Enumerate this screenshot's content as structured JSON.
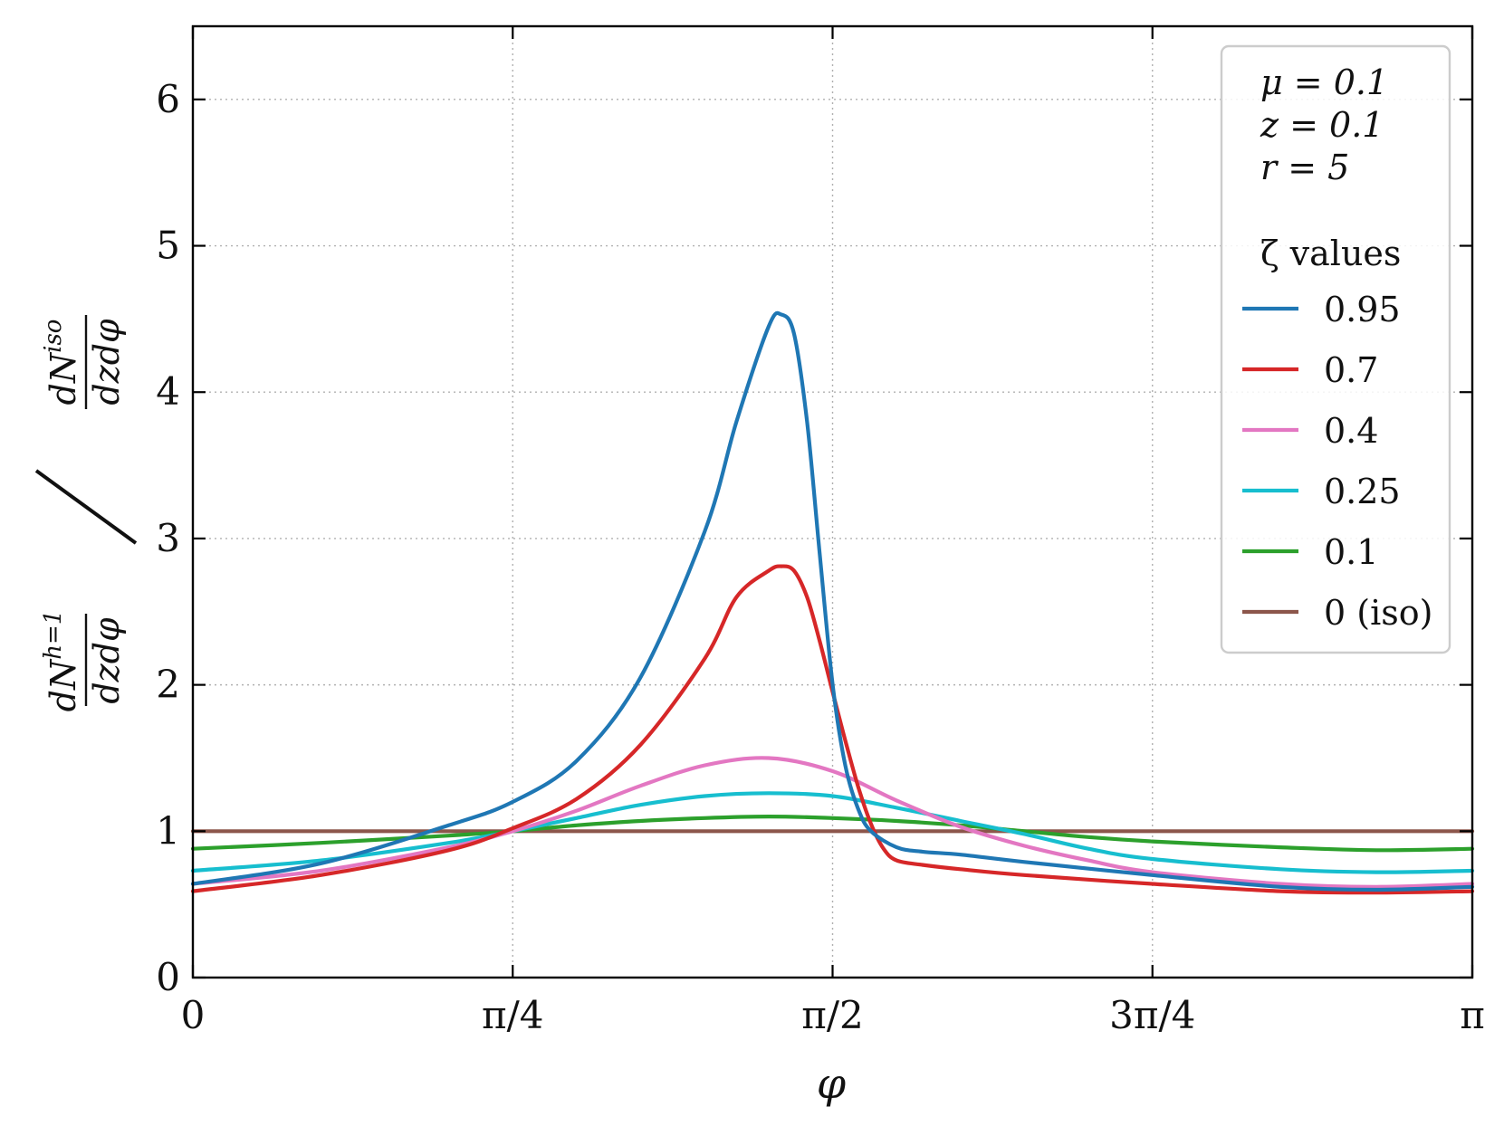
{
  "chart_data": {
    "type": "line",
    "xlabel": "φ",
    "ylabel": {
      "numerator": "dN",
      "numerator_sup": "h=1",
      "denominator": "dzdφ",
      "slash": "/",
      "iso_numerator": "dN",
      "iso_sup": "iso",
      "iso_denominator": "dzdφ"
    },
    "xlim": [
      0,
      3.14159
    ],
    "ylim": [
      0,
      6.5
    ],
    "grid": true,
    "legend_position": "top-right",
    "x_ticks": [
      {
        "value": 0,
        "label": "0"
      },
      {
        "value": 0.785398,
        "label": "π/4"
      },
      {
        "value": 1.570796,
        "label": "π/2"
      },
      {
        "value": 2.356194,
        "label": "3π/4"
      },
      {
        "value": 3.141593,
        "label": "π"
      }
    ],
    "y_ticks": [
      {
        "value": 0,
        "label": "0"
      },
      {
        "value": 1,
        "label": "1"
      },
      {
        "value": 2,
        "label": "2"
      },
      {
        "value": 3,
        "label": "3"
      },
      {
        "value": 4,
        "label": "4"
      },
      {
        "value": 5,
        "label": "5"
      },
      {
        "value": 6,
        "label": "6"
      }
    ],
    "legend": {
      "params": [
        "μ = 0.1",
        "z = 0.1",
        "r = 5"
      ],
      "title": "ζ values"
    },
    "series": [
      {
        "name": "0.95",
        "color": "#1f77b4",
        "x": [
          0,
          0.314,
          0.628,
          0.785,
          0.942,
          1.099,
          1.257,
          1.335,
          1.414,
          1.445,
          1.476,
          1.508,
          1.539,
          1.571,
          1.602,
          1.634,
          1.665,
          1.728,
          1.791,
          1.885,
          2.042,
          2.356,
          2.67,
          2.906,
          3.14159
        ],
        "y": [
          0.64,
          0.78,
          1.04,
          1.2,
          1.48,
          2.05,
          3.05,
          3.8,
          4.45,
          4.53,
          4.4,
          3.8,
          2.9,
          2.0,
          1.45,
          1.15,
          1.0,
          0.89,
          0.86,
          0.84,
          0.79,
          0.7,
          0.62,
          0.6,
          0.62
        ]
      },
      {
        "name": "0.7",
        "color": "#d62728",
        "x": [
          0,
          0.314,
          0.628,
          0.785,
          0.942,
          1.099,
          1.257,
          1.335,
          1.414,
          1.445,
          1.476,
          1.508,
          1.539,
          1.571,
          1.602,
          1.634,
          1.665,
          1.696,
          1.728,
          1.791,
          1.885,
          2.042,
          2.356,
          2.67,
          2.906,
          3.14159
        ],
        "y": [
          0.59,
          0.7,
          0.87,
          1.02,
          1.22,
          1.59,
          2.18,
          2.6,
          2.78,
          2.81,
          2.78,
          2.6,
          2.3,
          1.95,
          1.62,
          1.3,
          1.05,
          0.88,
          0.8,
          0.77,
          0.74,
          0.7,
          0.64,
          0.59,
          0.58,
          0.59
        ]
      },
      {
        "name": "0.4",
        "color": "#e377c2",
        "x": [
          0,
          0.314,
          0.628,
          0.785,
          0.942,
          1.099,
          1.257,
          1.414,
          1.571,
          1.728,
          1.885,
          2.042,
          2.199,
          2.356,
          2.67,
          2.906,
          3.14159
        ],
        "y": [
          0.64,
          0.73,
          0.89,
          1.0,
          1.14,
          1.31,
          1.45,
          1.5,
          1.41,
          1.21,
          1.03,
          0.9,
          0.8,
          0.72,
          0.64,
          0.62,
          0.64
        ]
      },
      {
        "name": "0.25",
        "color": "#17becf",
        "x": [
          0,
          0.314,
          0.628,
          0.785,
          0.942,
          1.099,
          1.257,
          1.414,
          1.571,
          1.728,
          1.885,
          2.042,
          2.199,
          2.356,
          2.67,
          2.906,
          3.14159
        ],
        "y": [
          0.73,
          0.8,
          0.92,
          1.0,
          1.09,
          1.18,
          1.24,
          1.26,
          1.24,
          1.16,
          1.07,
          0.98,
          0.88,
          0.81,
          0.74,
          0.72,
          0.73
        ]
      },
      {
        "name": "0.1",
        "color": "#2ca02c",
        "x": [
          0,
          0.314,
          0.628,
          0.785,
          0.942,
          1.099,
          1.257,
          1.414,
          1.571,
          1.728,
          1.885,
          2.042,
          2.199,
          2.356,
          2.67,
          2.906,
          3.14159
        ],
        "y": [
          0.88,
          0.92,
          0.97,
          1.0,
          1.04,
          1.07,
          1.09,
          1.1,
          1.09,
          1.07,
          1.04,
          1.0,
          0.96,
          0.93,
          0.89,
          0.87,
          0.88
        ]
      },
      {
        "name": "0 (iso)",
        "color": "#8c564b",
        "x": [
          0,
          3.14159
        ],
        "y": [
          1.0,
          1.0
        ]
      }
    ]
  }
}
